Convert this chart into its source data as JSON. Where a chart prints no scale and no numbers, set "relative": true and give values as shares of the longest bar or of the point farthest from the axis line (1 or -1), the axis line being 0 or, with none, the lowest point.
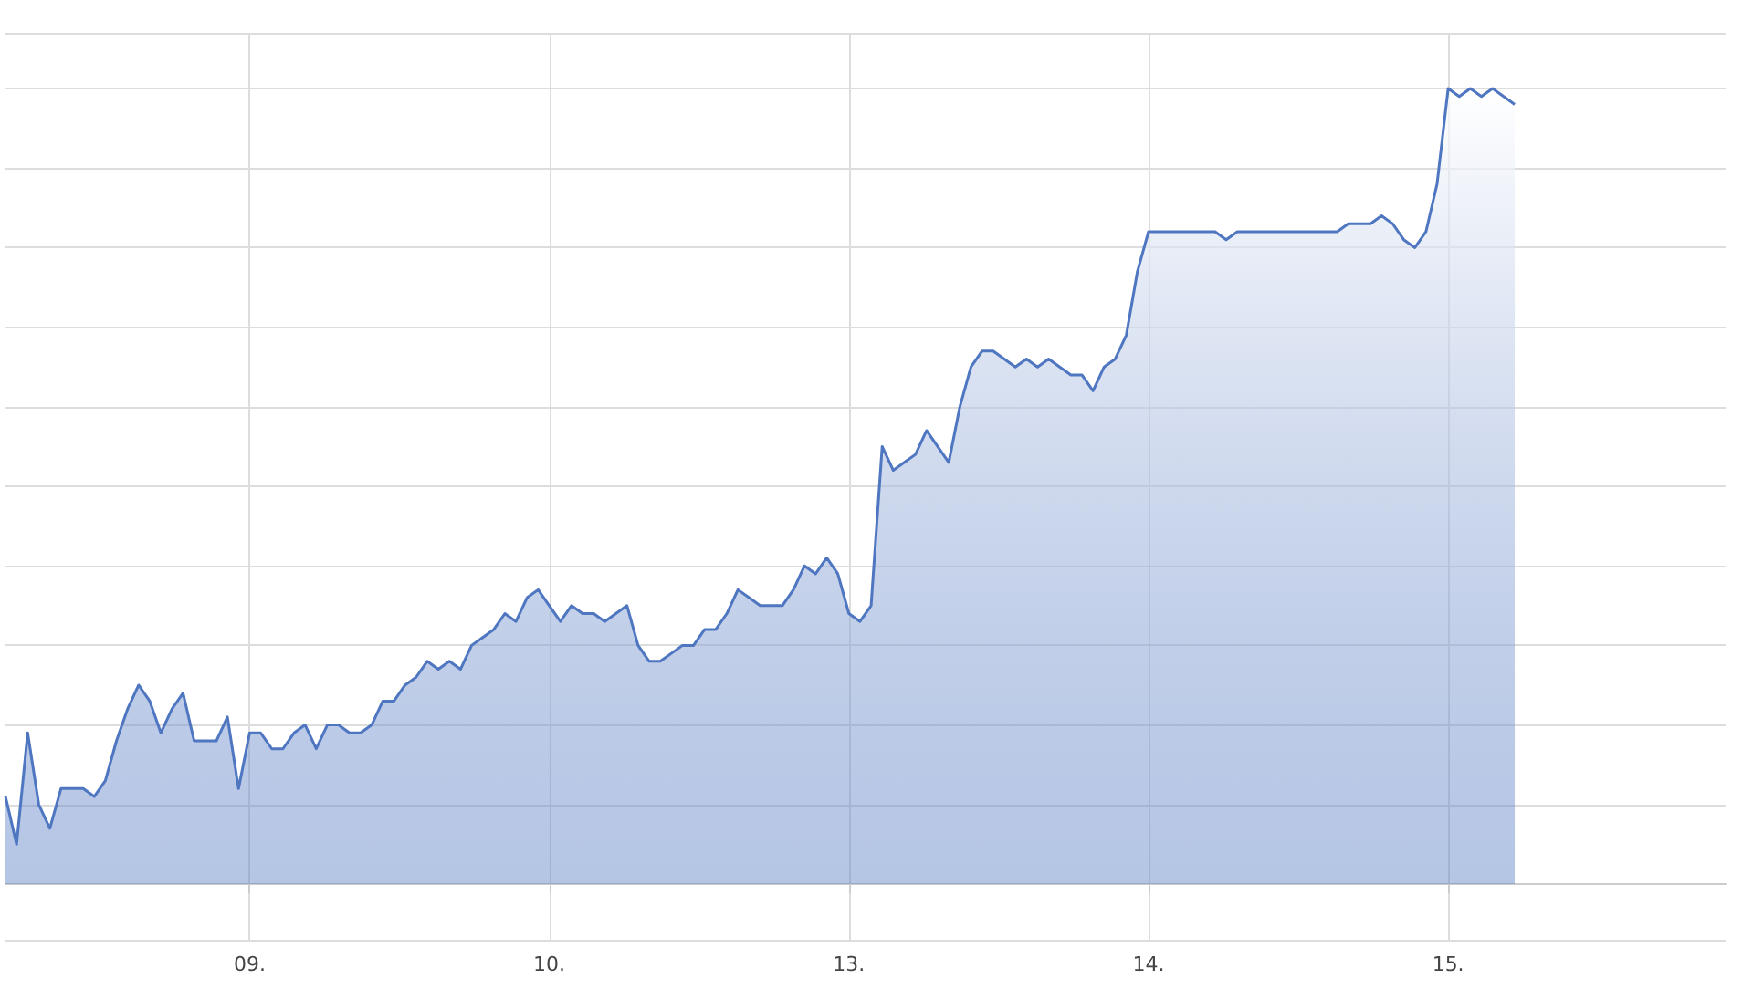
{
  "chart_data": {
    "type": "area",
    "relative": true,
    "grid": true,
    "marker": "none",
    "line_style": "solid",
    "categories": [
      null,
      null,
      null,
      null,
      null,
      null,
      null,
      null,
      null,
      null,
      null,
      null,
      null,
      null,
      null,
      null,
      null,
      null,
      null,
      null,
      null,
      null,
      "09.",
      null,
      null,
      null,
      null,
      null,
      null,
      null,
      null,
      null,
      null,
      null,
      null,
      null,
      null,
      null,
      null,
      null,
      null,
      null,
      null,
      null,
      null,
      null,
      null,
      null,
      null,
      "10.",
      null,
      null,
      null,
      null,
      null,
      null,
      null,
      null,
      null,
      null,
      null,
      null,
      null,
      null,
      null,
      null,
      null,
      null,
      null,
      null,
      null,
      null,
      null,
      null,
      null,
      null,
      "13.",
      null,
      null,
      null,
      null,
      null,
      null,
      null,
      null,
      null,
      null,
      null,
      null,
      null,
      null,
      null,
      null,
      null,
      null,
      null,
      null,
      null,
      null,
      null,
      null,
      null,
      null,
      "14.",
      null,
      null,
      null,
      null,
      null,
      null,
      null,
      null,
      null,
      null,
      null,
      null,
      null,
      null,
      null,
      null,
      null,
      null,
      null,
      null,
      null,
      null,
      null,
      null,
      null,
      null,
      "15.",
      null,
      null,
      null,
      null,
      null,
      null,
      null,
      null,
      null,
      null,
      null,
      null,
      null,
      null,
      null,
      null,
      null,
      null,
      null,
      null,
      null,
      null,
      null,
      null,
      null
    ],
    "series": [
      {
        "color": "#4f76c0",
        "values": [
          0.11,
          0.05,
          0.19,
          0.1,
          0.07,
          0.12,
          0.12,
          0.12,
          0.11,
          0.13,
          0.18,
          0.22,
          0.25,
          0.23,
          0.19,
          0.22,
          0.24,
          0.18,
          0.18,
          0.18,
          0.21,
          0.12,
          0.19,
          0.19,
          0.17,
          0.17,
          0.19,
          0.2,
          0.17,
          0.2,
          0.2,
          0.19,
          0.19,
          0.2,
          0.23,
          0.23,
          0.25,
          0.26,
          0.28,
          0.27,
          0.28,
          0.27,
          0.3,
          0.31,
          0.32,
          0.34,
          0.33,
          0.36,
          0.37,
          0.35,
          0.33,
          0.35,
          0.34,
          0.34,
          0.33,
          0.34,
          0.35,
          0.3,
          0.28,
          0.28,
          0.29,
          0.3,
          0.3,
          0.32,
          0.32,
          0.34,
          0.37,
          0.36,
          0.35,
          0.35,
          0.35,
          0.37,
          0.4,
          0.39,
          0.41,
          0.39,
          0.34,
          0.33,
          0.35,
          0.55,
          0.52,
          0.53,
          0.54,
          0.57,
          0.55,
          0.53,
          0.6,
          0.65,
          0.67,
          0.67,
          0.66,
          0.65,
          0.66,
          0.65,
          0.66,
          0.65,
          0.64,
          0.64,
          0.62,
          0.65,
          0.66,
          0.69,
          0.77,
          0.82,
          0.82,
          0.82,
          0.82,
          0.82,
          0.82,
          0.82,
          0.81,
          0.82,
          0.82,
          0.82,
          0.82,
          0.82,
          0.82,
          0.82,
          0.82,
          0.82,
          0.82,
          0.83,
          0.83,
          0.83,
          0.84,
          0.83,
          0.81,
          0.8,
          0.82,
          0.88,
          1.0,
          0.99,
          1.0,
          0.99,
          1.0,
          0.99,
          0.98,
          null,
          null,
          null,
          null,
          null,
          null,
          null,
          null,
          null,
          null,
          null,
          null,
          null,
          null,
          null,
          null,
          null,
          null,
          null
        ]
      }
    ]
  }
}
